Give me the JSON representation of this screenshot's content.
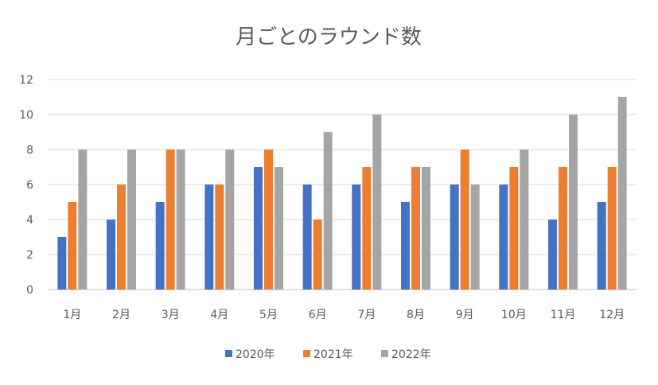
{
  "chart_data": {
    "type": "bar",
    "title": "月ごとのラウンド数",
    "categories": [
      "1月",
      "2月",
      "3月",
      "4月",
      "5月",
      "6月",
      "7月",
      "8月",
      "9月",
      "10月",
      "11月",
      "12月"
    ],
    "series": [
      {
        "name": "2020年",
        "color": "#4472C4",
        "values": [
          3,
          4,
          5,
          6,
          7,
          6,
          6,
          5,
          6,
          6,
          4,
          5
        ]
      },
      {
        "name": "2021年",
        "color": "#ED7D31",
        "values": [
          5,
          6,
          8,
          6,
          8,
          4,
          7,
          7,
          8,
          7,
          7,
          7
        ]
      },
      {
        "name": "2022年",
        "color": "#A5A5A5",
        "values": [
          8,
          8,
          8,
          8,
          7,
          9,
          10,
          7,
          6,
          8,
          10,
          11
        ]
      }
    ],
    "xlabel": "",
    "ylabel": "",
    "ylim": [
      0,
      12
    ],
    "yticks": [
      0,
      2,
      4,
      6,
      8,
      10,
      12
    ],
    "grid": true,
    "legend": "bottom"
  }
}
